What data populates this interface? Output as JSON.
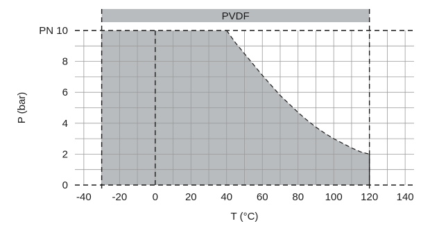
{
  "chart_data": {
    "type": "area",
    "title": "",
    "material_banner": "PVDF",
    "xlabel": "T (°C)",
    "ylabel": "P (bar)",
    "xlim": [
      -45,
      145
    ],
    "ylim": [
      0,
      10
    ],
    "x_ticks": [
      "-40",
      "-20",
      "0",
      "20",
      "40",
      "60",
      "80",
      "100",
      "120",
      "140"
    ],
    "x_tick_values": [
      -40,
      -20,
      0,
      20,
      40,
      60,
      80,
      100,
      120,
      140
    ],
    "y_ticks": [
      "0",
      "2",
      "4",
      "6",
      "8",
      "PN 10"
    ],
    "y_tick_values": [
      0,
      2,
      4,
      6,
      8,
      10
    ],
    "grid": true,
    "series": [
      {
        "x": [
          -30,
          40,
          45,
          50,
          55,
          60,
          65,
          70,
          75,
          80,
          85,
          90,
          95,
          100,
          105,
          110,
          115,
          120
        ],
        "y": [
          10,
          10,
          9.2,
          8.5,
          7.8,
          7.1,
          6.45,
          5.8,
          5.25,
          4.7,
          4.2,
          3.75,
          3.35,
          3.0,
          2.7,
          2.4,
          2.15,
          2.0
        ]
      }
    ],
    "colors": {
      "fill": "#b9bcbf",
      "banner": "#b9bcbf",
      "grid": "#9a9a9a",
      "line": "#1a1a1a"
    }
  }
}
